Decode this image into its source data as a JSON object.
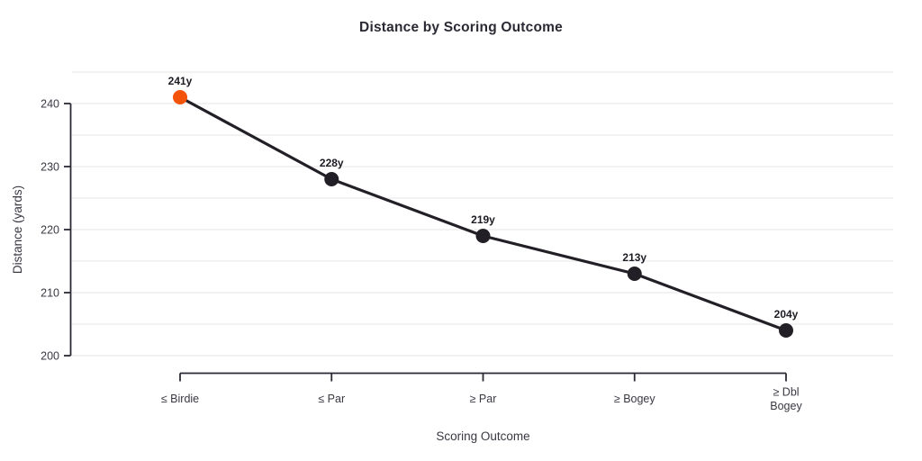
{
  "chart_data": {
    "type": "line",
    "title": "Distance by Scoring Outcome",
    "xlabel": "Scoring Outcome",
    "ylabel": "Distance (yards)",
    "categories": [
      "≤ Birdie",
      "≤ Par",
      "≥ Par",
      "≥ Bogey",
      "≥ Dbl\nBogey"
    ],
    "values": [
      241,
      228,
      219,
      213,
      204
    ],
    "point_labels": [
      "241y",
      "228y",
      "219y",
      "213y",
      "204y"
    ],
    "yticks": [
      200,
      210,
      220,
      230,
      240
    ],
    "ylim": [
      200,
      245
    ],
    "grid_step": 5,
    "grid": true,
    "legend": "none",
    "highlight_index": 0,
    "colors": {
      "line": "#221f26",
      "point": "#221f26",
      "highlight": "#f4530a",
      "grid": "#ebebeb",
      "axis": "#2b2933",
      "tick_text": "#3a3842",
      "point_label": "#1d1b22",
      "title": "#2b2933"
    }
  }
}
